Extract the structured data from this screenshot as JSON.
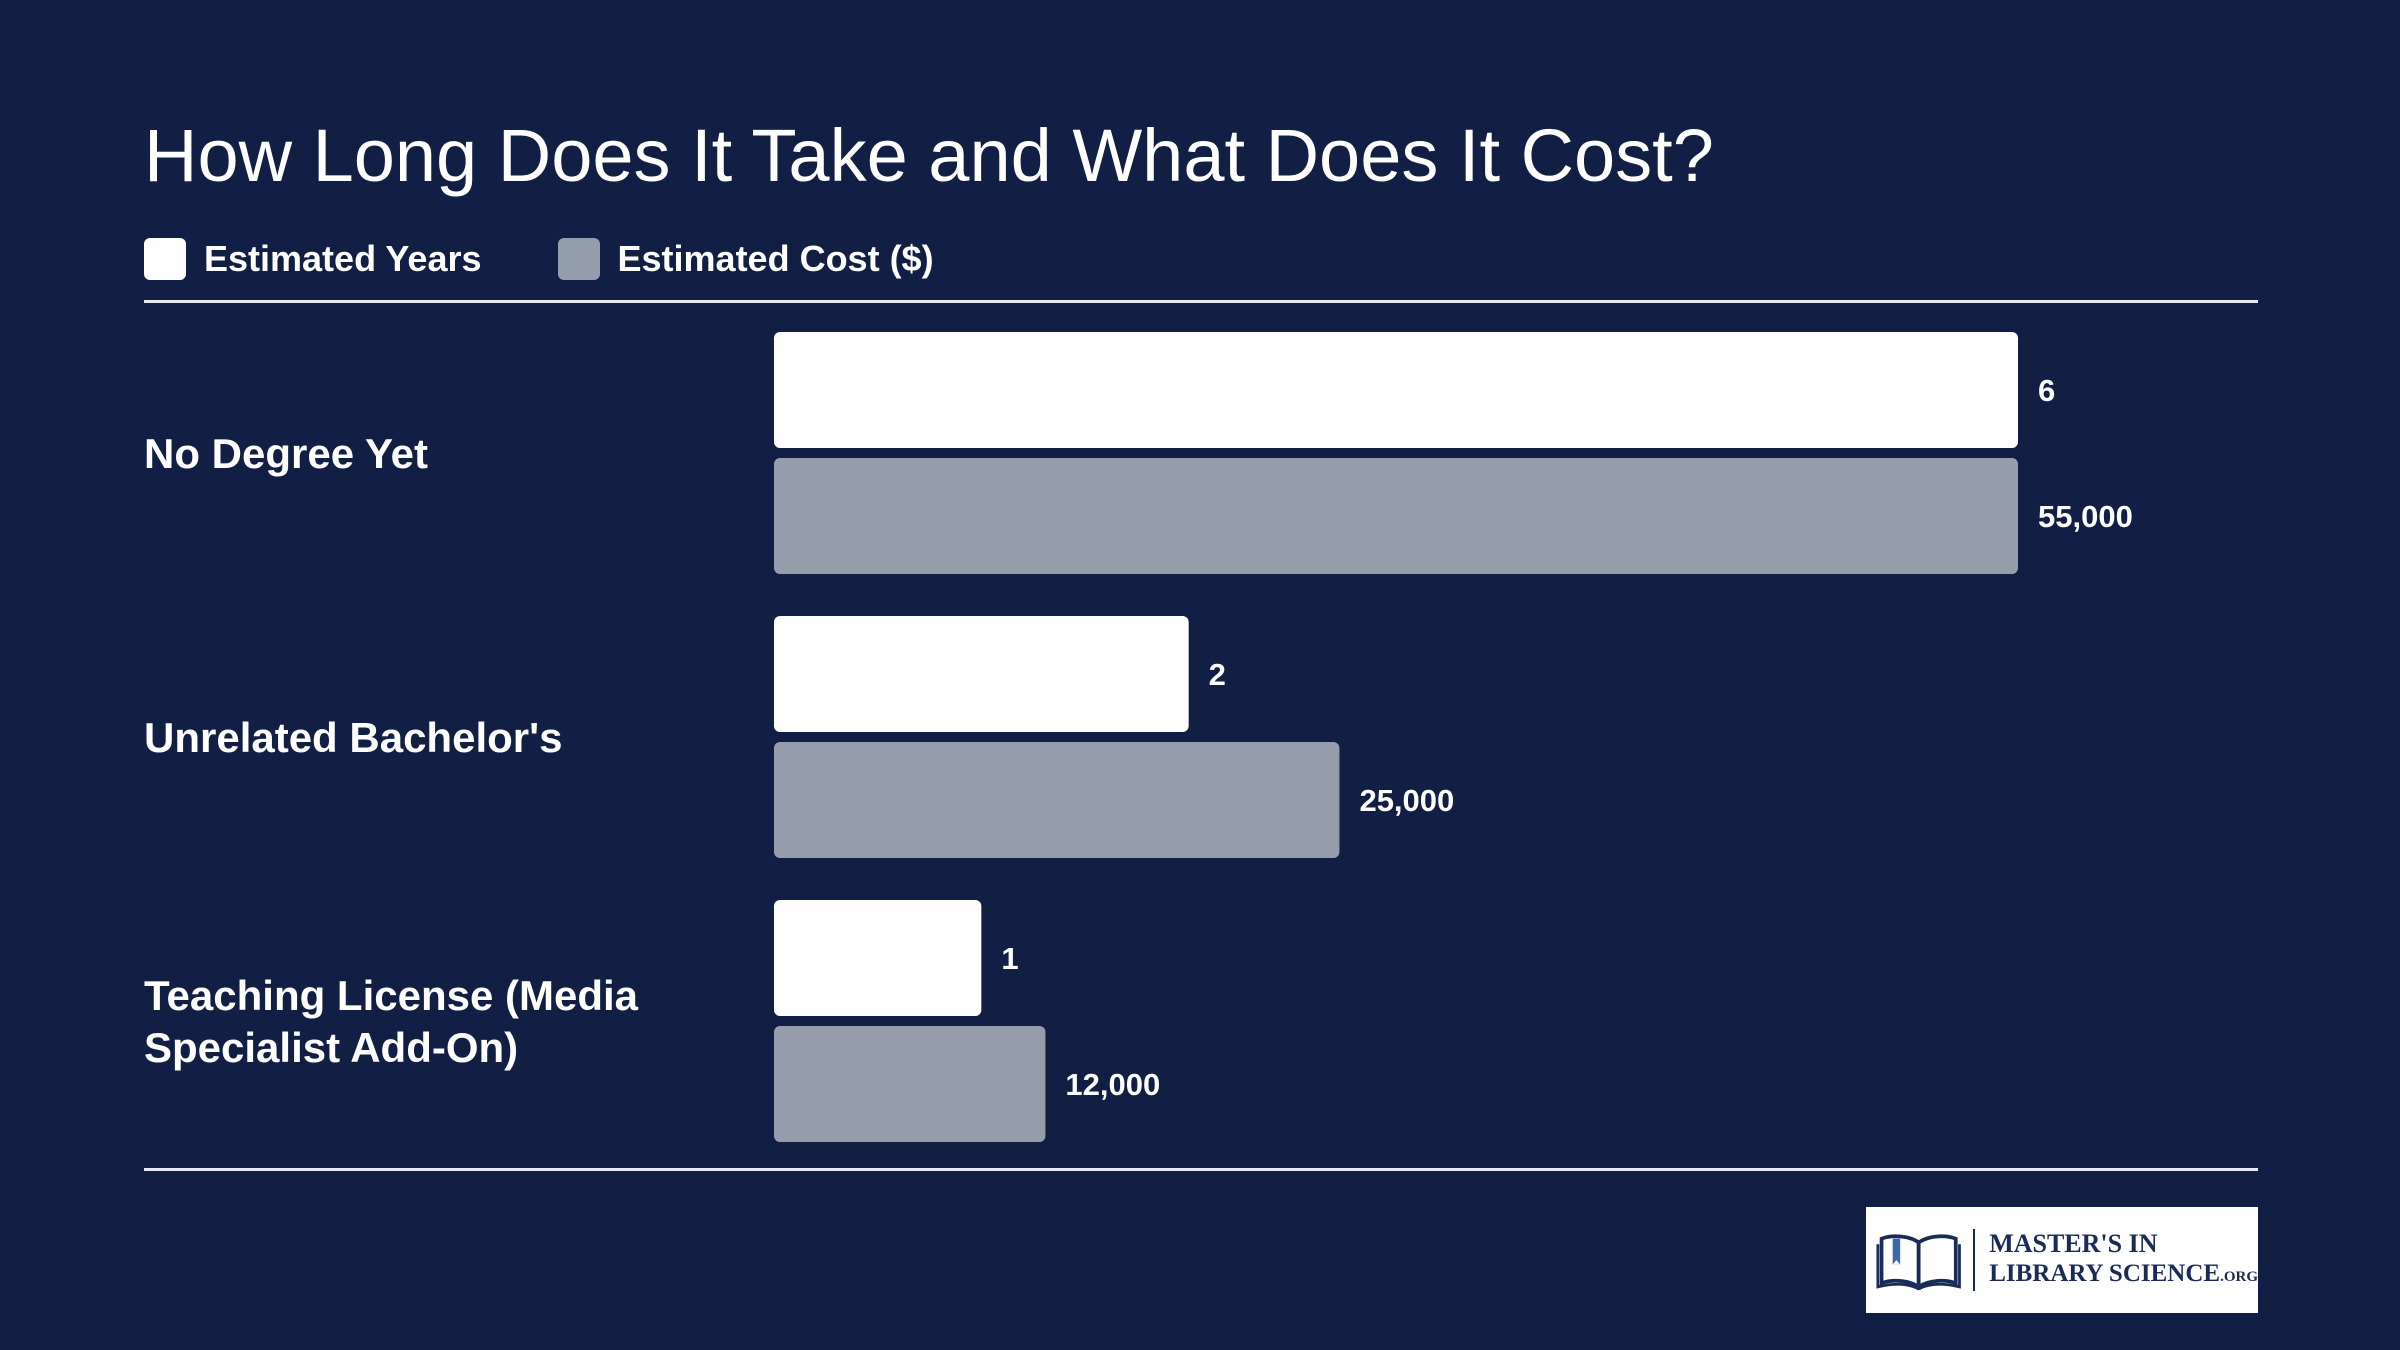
{
  "title": "How Long Does It Take and What Does It Cost?",
  "legend": [
    {
      "label": "Estimated Years",
      "color": "#ffffff"
    },
    {
      "label": "Estimated Cost ($)",
      "color": "#959cab"
    }
  ],
  "colors": {
    "background": "#111f44",
    "rule": "#e6e9f0"
  },
  "chart_data": {
    "type": "bar",
    "orientation": "horizontal",
    "categories": [
      "No Degree Yet",
      "Unrelated Bachelor's",
      "Teaching License (Media Specialist Add-On)"
    ],
    "series": [
      {
        "name": "Estimated Years",
        "values": [
          6,
          2,
          1
        ],
        "labels": [
          "6",
          "2",
          "1"
        ],
        "color": "#ffffff",
        "max": 6
      },
      {
        "name": "Estimated Cost ($)",
        "values": [
          55000,
          25000,
          12000
        ],
        "labels": [
          "55,000",
          "25,000",
          "12,000"
        ],
        "color": "#959cab",
        "max": 55000
      }
    ],
    "legend_position": "top-left",
    "grid": false
  },
  "logo": {
    "line1": "MASTER'S IN",
    "line2": "LIBRARY SCIENCE",
    "suffix": ".ORG"
  }
}
